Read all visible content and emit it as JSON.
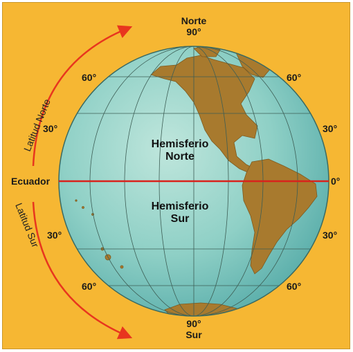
{
  "top_pole": {
    "name": "Norte",
    "degrees": "90°"
  },
  "bottom_pole": {
    "degrees": "90°",
    "name": "Sur"
  },
  "left_labels": {
    "lat_60_n": "60°",
    "lat_30_n": "30°",
    "equator": "Ecuador",
    "lat_30_s": "30°",
    "lat_60_s": "60°"
  },
  "right_labels": {
    "lat_60_n": "60°",
    "lat_30_n": "30°",
    "equator": "0°",
    "lat_30_s": "30°",
    "lat_60_s": "60°"
  },
  "arc_labels": {
    "north": "Latitud Norte",
    "south": "Latitud Sur"
  },
  "hemispheres": {
    "north_line1": "Hemisferio",
    "north_line2": "Norte",
    "south_line1": "Hemisferio",
    "south_line2": "Sur"
  },
  "colors": {
    "background": "#f6b733",
    "ocean": "#8fd0c6",
    "land": "#a87a2e",
    "equator": "#d9221c",
    "arrows": "#e8361e"
  }
}
